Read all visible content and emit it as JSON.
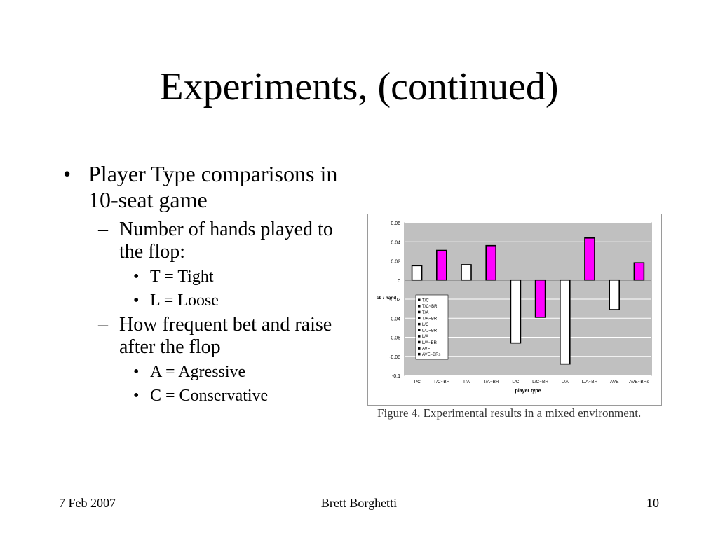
{
  "slide": {
    "title": "Experiments, (continued)",
    "bullets": [
      {
        "text": "Player Type comparisons in 10-seat game",
        "sub": [
          {
            "text": "Number of hands played to the flop:",
            "sub": [
              "T = Tight",
              "L = Loose"
            ]
          },
          {
            "text": "How frequent bet and raise after the flop",
            "sub": [
              "A = Agressive",
              "C = Conservative"
            ]
          }
        ]
      }
    ]
  },
  "figure": {
    "caption": "Figure 4. Experimental results in a mixed environment."
  },
  "footer": {
    "date": "7 Feb 2007",
    "author": "Brett Borghetti",
    "page": "10"
  },
  "colors": {
    "plot_bg": "#c0c0c0",
    "magenta": "#ff00ff",
    "white_bar": "#ffffff",
    "bar_stroke": "#000000"
  },
  "chart_data": {
    "type": "bar",
    "categories": [
      "T/C",
      "T/C~BR",
      "T/A",
      "T/A~BR",
      "L/C",
      "L/C~BR",
      "L/A",
      "L/A~BR",
      "AVE",
      "AVE~BRs"
    ],
    "values": [
      0.015,
      0.031,
      0.016,
      0.036,
      -0.066,
      -0.039,
      -0.088,
      0.044,
      -0.031,
      0.018
    ],
    "bar_colors": [
      "#ffffff",
      "#ff00ff",
      "#ffffff",
      "#ff00ff",
      "#ffffff",
      "#ff00ff",
      "#ffffff",
      "#ff00ff",
      "#ffffff",
      "#ff00ff"
    ],
    "ylim": [
      -0.1,
      0.06
    ],
    "yticks": [
      "0.06",
      "0.04",
      "0.02",
      "0",
      "-0.02",
      "-0.04",
      "-0.06",
      "-0.08",
      "-0.1"
    ],
    "ytick_values": [
      0.06,
      0.04,
      0.02,
      0,
      -0.02,
      -0.04,
      -0.06,
      -0.08,
      -0.1
    ],
    "xlabel": "player type",
    "ylabel": "sb / hand",
    "grid": true,
    "legend": {
      "placement": "left-inside",
      "entries": [
        "T/C",
        "T/C~BR",
        "T/A",
        "T/A~BR",
        "L/C",
        "L/C~BR",
        "L/A",
        "L/A~BR",
        "AVE",
        "AVE~BRs"
      ]
    }
  }
}
